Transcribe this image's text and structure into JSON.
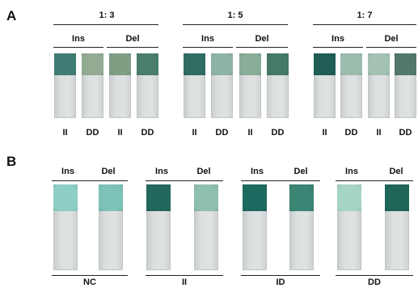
{
  "panel_a": {
    "letter": "A",
    "groups": [
      {
        "ratio": "1: 3",
        "ins_label": "Ins",
        "del_label": "Del",
        "strips": [
          {
            "genotype": "II",
            "pad_color": "#3f7d74"
          },
          {
            "genotype": "DD",
            "pad_color": "#93ab93"
          },
          {
            "genotype": "II",
            "pad_color": "#7f9f84"
          },
          {
            "genotype": "DD",
            "pad_color": "#4a7d6c"
          }
        ]
      },
      {
        "ratio": "1: 5",
        "ins_label": "Ins",
        "del_label": "Del",
        "strips": [
          {
            "genotype": "II",
            "pad_color": "#2f6c62"
          },
          {
            "genotype": "DD",
            "pad_color": "#8fb3a5"
          },
          {
            "genotype": "II",
            "pad_color": "#89ad99"
          },
          {
            "genotype": "DD",
            "pad_color": "#457a6a"
          }
        ]
      },
      {
        "ratio": "1: 7",
        "ins_label": "Ins",
        "del_label": "Del",
        "strips": [
          {
            "genotype": "II",
            "pad_color": "#1f5d55"
          },
          {
            "genotype": "DD",
            "pad_color": "#9cbdae"
          },
          {
            "genotype": "II",
            "pad_color": "#a3c2b3"
          },
          {
            "genotype": "DD",
            "pad_color": "#52786a"
          }
        ]
      }
    ]
  },
  "panel_b": {
    "letter": "B",
    "groups": [
      {
        "genotype": "NC",
        "ins_label": "Ins",
        "del_label": "Del",
        "strips": [
          {
            "pad_color": "#8ecfc5"
          },
          {
            "pad_color": "#7cc2b8"
          }
        ]
      },
      {
        "genotype": "II",
        "ins_label": "Ins",
        "del_label": "Del",
        "strips": [
          {
            "pad_color": "#23685e"
          },
          {
            "pad_color": "#8fbfae"
          }
        ]
      },
      {
        "genotype": "ID",
        "ins_label": "Ins",
        "del_label": "Del",
        "strips": [
          {
            "pad_color": "#1d6a60"
          },
          {
            "pad_color": "#3a8574"
          }
        ]
      },
      {
        "genotype": "DD",
        "ins_label": "Ins",
        "del_label": "Del",
        "strips": [
          {
            "pad_color": "#a6d5c7"
          },
          {
            "pad_color": "#1f6659"
          }
        ]
      }
    ]
  }
}
